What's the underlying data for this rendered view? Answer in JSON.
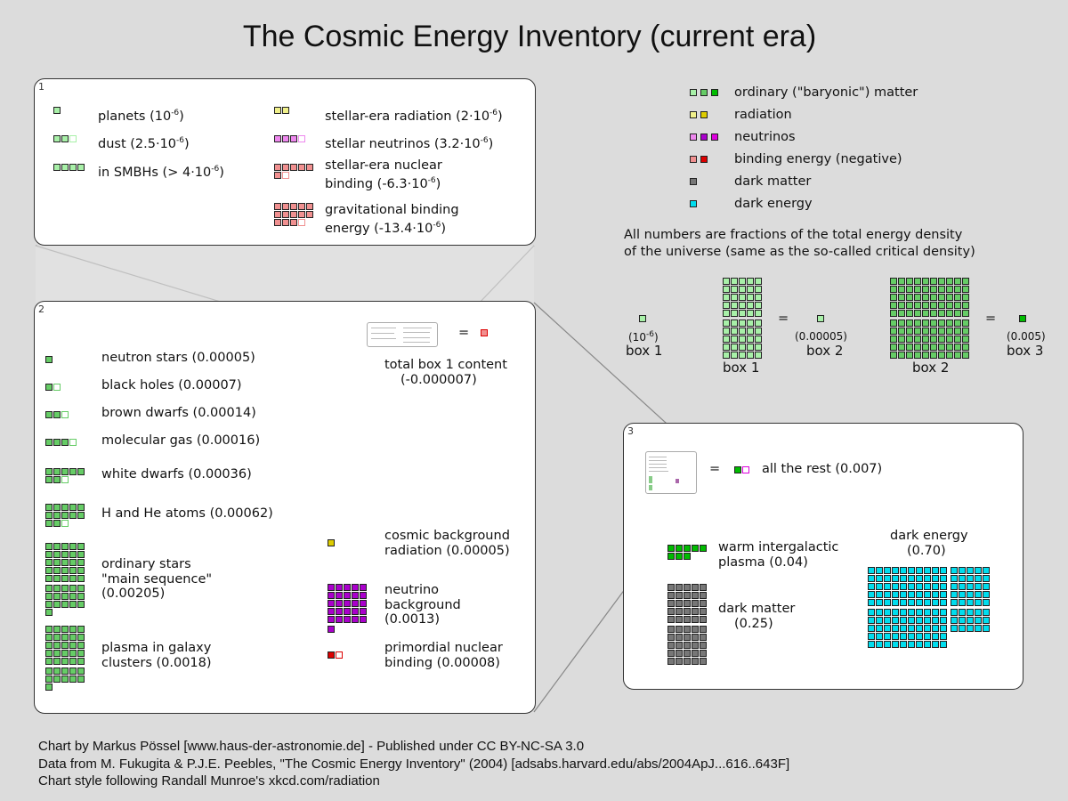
{
  "title": "The Cosmic Energy Inventory (current era)",
  "colors": {
    "baryon_light": "#a8f0a8",
    "baryon_mid": "#66cc66",
    "baryon_dark": "#00bb00",
    "radiation_light": "#f0f08a",
    "radiation_dark": "#ddcc00",
    "neutrino_light": "#ee88ee",
    "neutrino_mid": "#aa00cc",
    "neutrino_bright": "#dd00dd",
    "binding_light": "#f09090",
    "binding_dark": "#dd0000",
    "dark_matter": "#777777",
    "dark_energy": "#00ddee",
    "background": "#dcdcdc"
  },
  "legend": {
    "items": [
      {
        "label": "ordinary (\"baryonic\") matter",
        "swatches": [
          "#a8f0a8",
          "#66cc66",
          "#00bb00"
        ]
      },
      {
        "label": "radiation",
        "swatches": [
          "#f0f08a",
          "#ddcc00"
        ]
      },
      {
        "label": "neutrinos",
        "swatches": [
          "#ee88ee",
          "#aa00cc",
          "#dd00dd"
        ]
      },
      {
        "label": "binding energy (negative)",
        "swatches": [
          "#f09090",
          "#dd0000"
        ]
      },
      {
        "label": "dark matter",
        "swatches": [
          "#777777"
        ]
      },
      {
        "label": "dark energy",
        "swatches": [
          "#00ddee"
        ]
      }
    ],
    "note_line1": "All numbers are fractions of the total energy density",
    "note_line2": "of the universe (same as the so-called critical density)"
  },
  "scale": {
    "box1_unit_value": "(10",
    "box1_unit_exp": "-6",
    "box1_unit_close": ")",
    "box1_label": "box 1",
    "box1_grid_label": "box 1",
    "equals": "=",
    "box2_unit_value": "(0.00005)",
    "box2_label": "box 2",
    "box2_grid_label": "box 2",
    "box3_unit_value": "(0.005)",
    "box3_label": "box 3"
  },
  "panel1": {
    "number": "1",
    "items": [
      {
        "text": "planets (10",
        "exp": "-6",
        "tail": ")",
        "count": 1,
        "partial": 0,
        "color": "#a8f0a8"
      },
      {
        "text": "dust (2.5·10",
        "exp": "-6",
        "tail": ")",
        "count": 2,
        "partial": 0.5,
        "color": "#a8f0a8"
      },
      {
        "text": "in SMBHs (> 4·10",
        "exp": "-6",
        "tail": ")",
        "count": 4,
        "partial": 0,
        "color": "#a8f0a8"
      },
      {
        "text": "stellar-era radiation (2·10",
        "exp": "-6",
        "tail": ")",
        "count": 2,
        "partial": 0,
        "color": "#f0f08a"
      },
      {
        "text": "stellar neutrinos (3.2·10",
        "exp": "-6",
        "tail": ")",
        "count": 3,
        "partial": 0.2,
        "color": "#ee88ee"
      },
      {
        "text_line1": "stellar-era nuclear",
        "text": "binding (-6.3·10",
        "exp": "-6",
        "tail": ")",
        "count": 6,
        "partial": 0.3,
        "color": "#f09090"
      },
      {
        "text_line1": "gravitational binding",
        "text": "energy (-13.4·10",
        "exp": "-6",
        "tail": ")",
        "count": 13,
        "partial": 0.4,
        "color": "#f09090"
      }
    ]
  },
  "panel2": {
    "number": "2",
    "items": [
      {
        "label": "neutron stars (0.00005)",
        "count": 1,
        "partial": 0,
        "color": "#66cc66"
      },
      {
        "label": "black holes (0.00007)",
        "count": 1,
        "partial": 0.4,
        "color": "#66cc66"
      },
      {
        "label": "brown dwarfs (0.00014)",
        "count": 2,
        "partial": 0.8,
        "color": "#66cc66"
      },
      {
        "label": "molecular gas (0.00016)",
        "count": 3,
        "partial": 0.2,
        "color": "#66cc66"
      },
      {
        "label": "white dwarfs (0.00036)",
        "count": 7,
        "partial": 0.2,
        "color": "#66cc66"
      },
      {
        "label": "H and He atoms (0.00062)",
        "count": 12,
        "partial": 0.4,
        "color": "#66cc66"
      },
      {
        "label_lines": [
          "ordinary stars",
          "\"main sequence\"",
          "(0.00205)"
        ],
        "count": 41,
        "partial": 0,
        "color": "#66cc66"
      },
      {
        "label_lines": [
          "plasma in galaxy",
          "clusters (0.0018)"
        ],
        "count": 36,
        "partial": 0,
        "color": "#66cc66"
      },
      {
        "label_lines": [
          "cosmic background",
          "radiation (0.00005)"
        ],
        "count": 1,
        "partial": 0,
        "color": "#ddcc00"
      },
      {
        "label_lines": [
          "neutrino",
          "background",
          "(0.0013)"
        ],
        "count": 26,
        "partial": 0,
        "color": "#aa00cc"
      },
      {
        "label_lines": [
          "primordial nuclear",
          "binding (0.00008)"
        ],
        "count": 1,
        "partial": 0.6,
        "color": "#dd0000"
      }
    ],
    "box1_total_equals": "=",
    "box1_total_line1": "total box 1 content",
    "box1_total_line2": "(-0.000007)"
  },
  "panel3": {
    "number": "3",
    "equals": "=",
    "rest_label": "all the rest (0.007)",
    "items": [
      {
        "label_lines": [
          "warm intergalactic",
          "plasma (0.04)"
        ],
        "count": 8,
        "color": "#00bb00"
      },
      {
        "label_lines": [
          "dark matter",
          "(0.25)"
        ],
        "count": 50,
        "color": "#777777"
      },
      {
        "label_lines": [
          "dark energy",
          "(0.70)"
        ],
        "count": 140,
        "color": "#00ddee"
      }
    ]
  },
  "footer": {
    "line1": "Chart by Markus Pössel [www.haus-der-astronomie.de] - Published under CC BY-NC-SA 3.0",
    "line2": "Data from M. Fukugita & P.J.E. Peebles, \"The Cosmic Energy Inventory\" (2004) [adsabs.harvard.edu/abs/2004ApJ...616..643F]",
    "line3": "Chart style following Randall Munroe's xkcd.com/radiation"
  },
  "chart_data": {
    "type": "table",
    "title": "The Cosmic Energy Inventory (current era)",
    "units": "fraction of critical density",
    "scale": {
      "box1": 1e-06,
      "box2": 5e-05,
      "box3": 0.005
    },
    "categories": [
      "planets",
      "dust",
      "in SMBHs",
      "stellar-era radiation",
      "stellar neutrinos",
      "stellar-era nuclear binding",
      "gravitational binding energy",
      "neutron stars",
      "black holes",
      "brown dwarfs",
      "molecular gas",
      "white dwarfs",
      "H and He atoms",
      "ordinary stars (main sequence)",
      "plasma in galaxy clusters",
      "cosmic background radiation",
      "neutrino background",
      "primordial nuclear binding",
      "total box 1 content",
      "all the rest",
      "warm intergalactic plasma",
      "dark matter",
      "dark energy"
    ],
    "values": [
      1e-06,
      2.5e-06,
      4e-06,
      2e-06,
      3.2e-06,
      -6.3e-06,
      -1.34e-05,
      5e-05,
      7e-05,
      0.00014,
      0.00016,
      0.00036,
      0.00062,
      0.00205,
      0.0018,
      5e-05,
      0.0013,
      -8e-05,
      -7e-06,
      0.007,
      0.04,
      0.25,
      0.7
    ],
    "groups": {
      "box1": [
        "planets",
        "dust",
        "in SMBHs",
        "stellar-era radiation",
        "stellar neutrinos",
        "stellar-era nuclear binding",
        "gravitational binding energy"
      ],
      "box2": [
        "neutron stars",
        "black holes",
        "brown dwarfs",
        "molecular gas",
        "white dwarfs",
        "H and He atoms",
        "ordinary stars (main sequence)",
        "plasma in galaxy clusters",
        "cosmic background radiation",
        "neutrino background",
        "primordial nuclear binding"
      ],
      "box3": [
        "all the rest",
        "warm intergalactic plasma",
        "dark matter",
        "dark energy"
      ]
    },
    "notes": [
      "in SMBHs value is a lower bound (> 4·10^-6)"
    ]
  }
}
